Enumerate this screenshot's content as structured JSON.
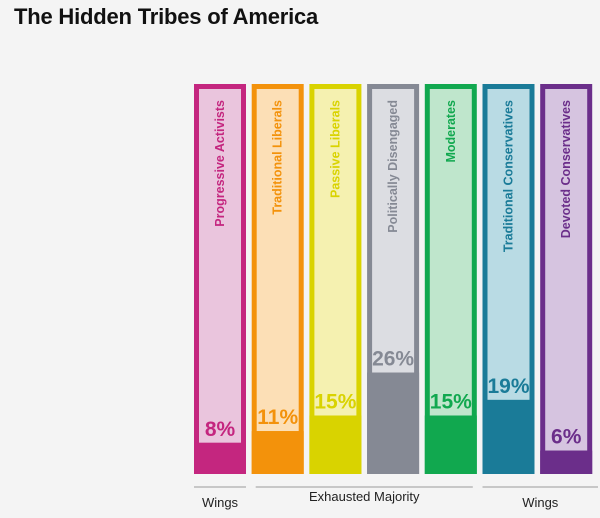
{
  "title": "The Hidden Tribes of America",
  "chart_data": {
    "type": "bar",
    "title": "The Hidden Tribes of America",
    "categories": [
      "Progressive Activists",
      "Traditional Liberals",
      "Passive Liberals",
      "Politically Disengaged",
      "Moderates",
      "Traditional Conservatives",
      "Devoted Conservatives"
    ],
    "values": [
      8,
      11,
      15,
      26,
      15,
      19,
      6
    ],
    "value_labels": [
      "8%",
      "11%",
      "15%",
      "26%",
      "15%",
      "19%",
      "6%"
    ],
    "unit": "%",
    "ylim": [
      0,
      100
    ],
    "colors": [
      "#c4267f",
      "#f3920b",
      "#d9d300",
      "#858994",
      "#11a84f",
      "#1a7b98",
      "#6b2e8a"
    ],
    "light_colors": [
      "#eac5dd",
      "#fcdfb6",
      "#f5f1b0",
      "#dcdde2",
      "#bfe6cc",
      "#b9dbe4",
      "#d6c4e0"
    ],
    "groups": [
      {
        "label": "Wings",
        "from": 0,
        "to": 0
      },
      {
        "label": "Exhausted Majority",
        "from": 1,
        "to": 4
      },
      {
        "label": "Wings",
        "from": 5,
        "to": 6
      }
    ]
  }
}
